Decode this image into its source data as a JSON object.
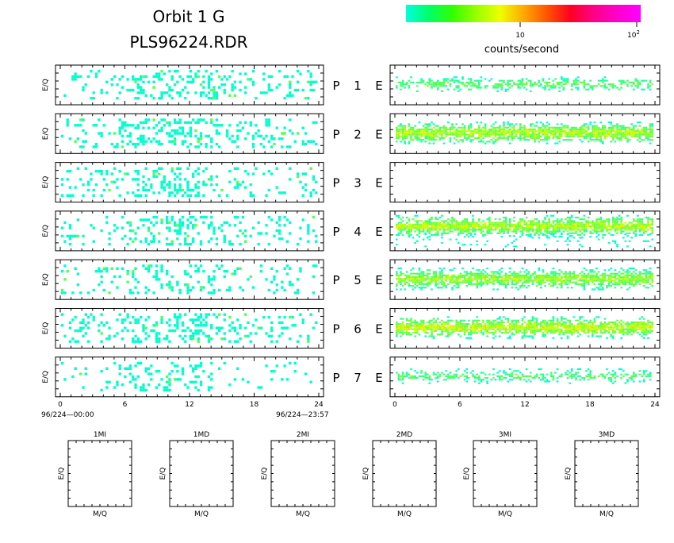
{
  "header": {
    "title_line1": "Orbit  1  G",
    "title_line2": "PLS96224.RDR"
  },
  "colorbar": {
    "tick_10": "10",
    "tick_100": "10",
    "tick_100_exp": "2",
    "label": "counts/second",
    "stops": [
      "#00ffdd",
      "#00ff66",
      "#33ff00",
      "#99ff00",
      "#eeff00",
      "#ffaa00",
      "#ff5500",
      "#ff0022",
      "#ff0088",
      "#ff00cc",
      "#ff00ff"
    ]
  },
  "chart_data": {
    "type": "heatmap",
    "rows": [
      {
        "p": "P",
        "n": "1",
        "e": "E"
      },
      {
        "p": "P",
        "n": "2",
        "e": "E"
      },
      {
        "p": "P",
        "n": "3",
        "e": "E"
      },
      {
        "p": "P",
        "n": "4",
        "e": "E"
      },
      {
        "p": "P",
        "n": "5",
        "e": "E"
      },
      {
        "p": "P",
        "n": "6",
        "e": "E"
      },
      {
        "p": "P",
        "n": "7",
        "e": "E"
      }
    ],
    "ylabel": "E/Q",
    "xticks": [
      "0",
      "6",
      "12",
      "18",
      "24"
    ],
    "xrange": [
      0,
      24
    ],
    "time_start": "96/224—00:00",
    "time_end": "96/224—23:57",
    "left_density": [
      0.22,
      0.24,
      0.22,
      0.2,
      0.16,
      0.22,
      0.18
    ],
    "right_band": [
      {
        "density": 0.55,
        "intensity": 0.25
      },
      {
        "density": 0.95,
        "intensity": 0.45
      },
      {
        "density": 0.0,
        "intensity": 0.0
      },
      {
        "density": 0.95,
        "intensity": 0.45
      },
      {
        "density": 0.9,
        "intensity": 0.4
      },
      {
        "density": 0.95,
        "intensity": 0.5
      },
      {
        "density": 0.5,
        "intensity": 0.22
      }
    ],
    "small_panels": [
      {
        "title": "1MI",
        "ylabel": "E/Q",
        "xlabel": "M/Q"
      },
      {
        "title": "1MD",
        "ylabel": "E/Q",
        "xlabel": "M/Q"
      },
      {
        "title": "2MI",
        "ylabel": "E/Q",
        "xlabel": "M/Q"
      },
      {
        "title": "2MD",
        "ylabel": "E/Q",
        "xlabel": "M/Q"
      },
      {
        "title": "3MI",
        "ylabel": "E/Q",
        "xlabel": "M/Q"
      },
      {
        "title": "3MD",
        "ylabel": "E/Q",
        "xlabel": "M/Q"
      }
    ]
  }
}
